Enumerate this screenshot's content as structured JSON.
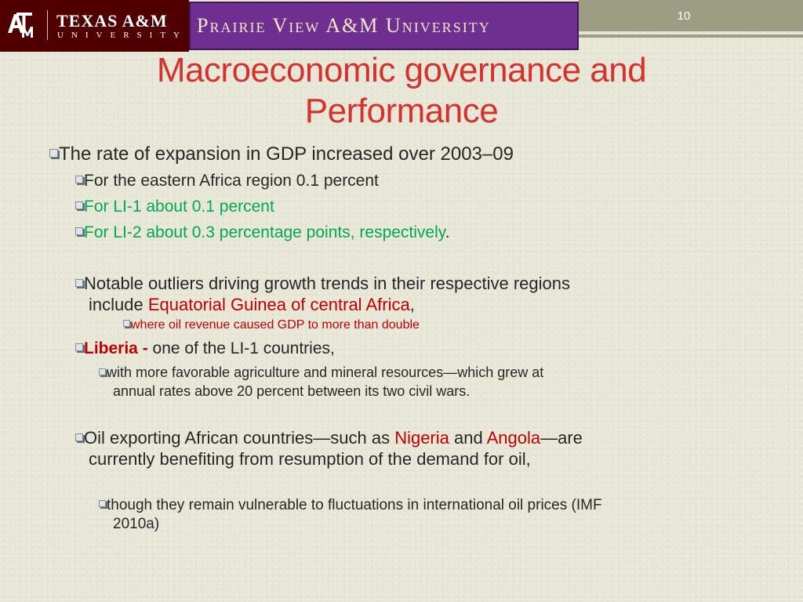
{
  "header": {
    "tamu_name": "TEXAS A&M",
    "tamu_sub": "UNIVERSITY",
    "pvamu_name": "Prairie View A&M University",
    "slide_number": "10"
  },
  "title": {
    "line1": "Macroeconomic governance and",
    "line2": "Performance"
  },
  "bullets": {
    "b1": "The rate of expansion in GDP increased over 2003–09",
    "b1a": "For the eastern Africa region 0.1 percent",
    "b1b": "For LI-1 about 0.1 percent",
    "b1c_green": "For LI-2 about 0.3 percentage points, respectively",
    "b1c_end": ".",
    "b2_line1": "Notable outliers driving growth trends in their respective regions",
    "b2_line2_prefix": "include ",
    "b2_line2_red": "Equatorial Guinea of central Africa",
    "b2_line2_end": ",",
    "b2a": "where oil revenue caused GDP to more than double",
    "b3_red": "Liberia - ",
    "b3_rest": "one of the LI-1 countries,",
    "b3a_line1": "with more favorable agriculture and mineral resources—which grew at",
    "b3a_line2": "annual rates above 20 percent between its two civil wars.",
    "b4_prefix": "Oil exporting African countries—such as ",
    "b4_nigeria": "Nigeria",
    "b4_and": " and ",
    "b4_angola": "Angola",
    "b4_end": "—are",
    "b4_line2": "currently benefiting from resumption of the demand for oil,",
    "b4a_line1": "though they remain vulnerable to fluctuations in international oil prices (IMF",
    "b4a_line2": "2010a)"
  },
  "colors": {
    "title": "#d4322c",
    "red_text": "#c00000",
    "green_text": "#00a84f",
    "tamu_maroon": "#500000",
    "pvamu_purple": "#6e2f91"
  }
}
